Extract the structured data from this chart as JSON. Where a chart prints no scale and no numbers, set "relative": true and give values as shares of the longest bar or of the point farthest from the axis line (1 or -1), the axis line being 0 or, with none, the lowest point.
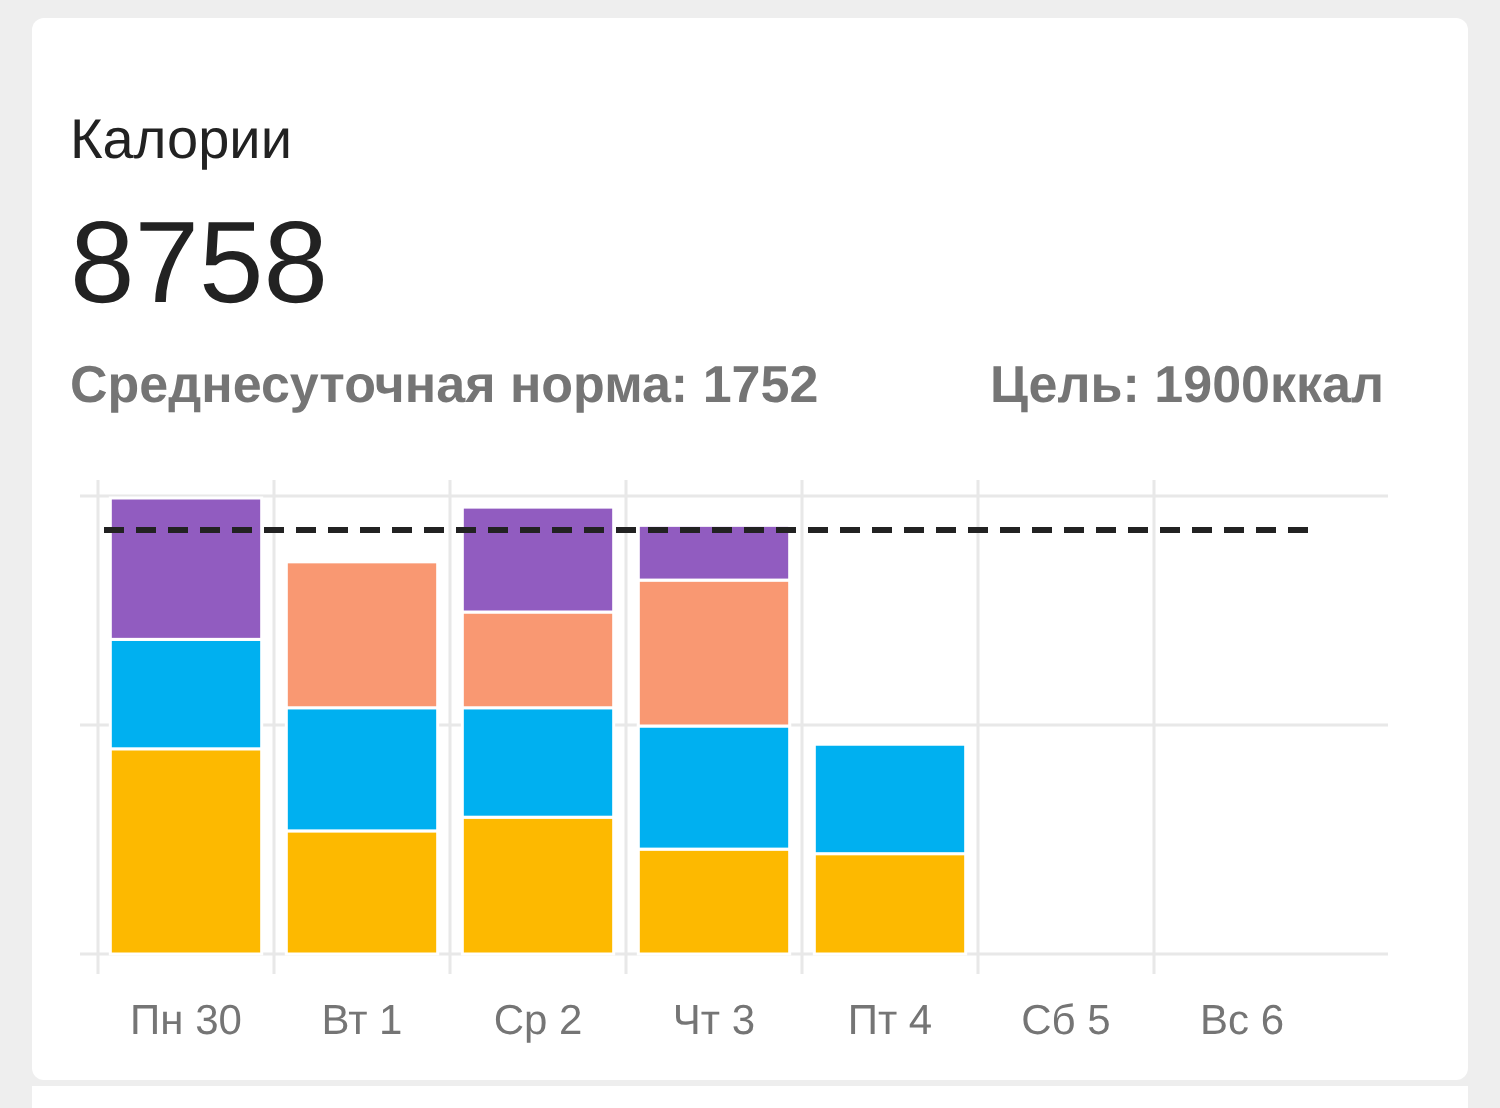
{
  "chart_data": {
    "type": "bar",
    "title": "Калории",
    "annotations": [
      "8758",
      "Среднесуточная норма: 1752",
      "Цель: 1900ккал"
    ],
    "categories": [
      "Пн 30",
      "Вт 1",
      "Ср 2",
      "Чт 3",
      "Пт 4",
      "Сб 5",
      "Вс 6"
    ],
    "relative": true,
    "stacked": true,
    "grid": true,
    "series": [
      {
        "color": "#fdb900",
        "values": [
          0.45,
          0.27,
          0.3,
          0.23,
          0.22,
          null,
          null
        ]
      },
      {
        "color": "#00b0f0",
        "values": [
          0.24,
          0.27,
          0.24,
          0.27,
          0.24,
          null,
          null
        ]
      },
      {
        "color": "#f99872",
        "values": [
          null,
          0.32,
          0.21,
          0.32,
          null,
          null,
          null
        ]
      },
      {
        "color": "#915cc0",
        "values": [
          0.31,
          null,
          0.23,
          0.12,
          null,
          null,
          null
        ]
      }
    ],
    "ref_lines": [
      {
        "axis": "y",
        "value": 0.93,
        "color": "#222222",
        "line_style": "dashed"
      }
    ]
  }
}
